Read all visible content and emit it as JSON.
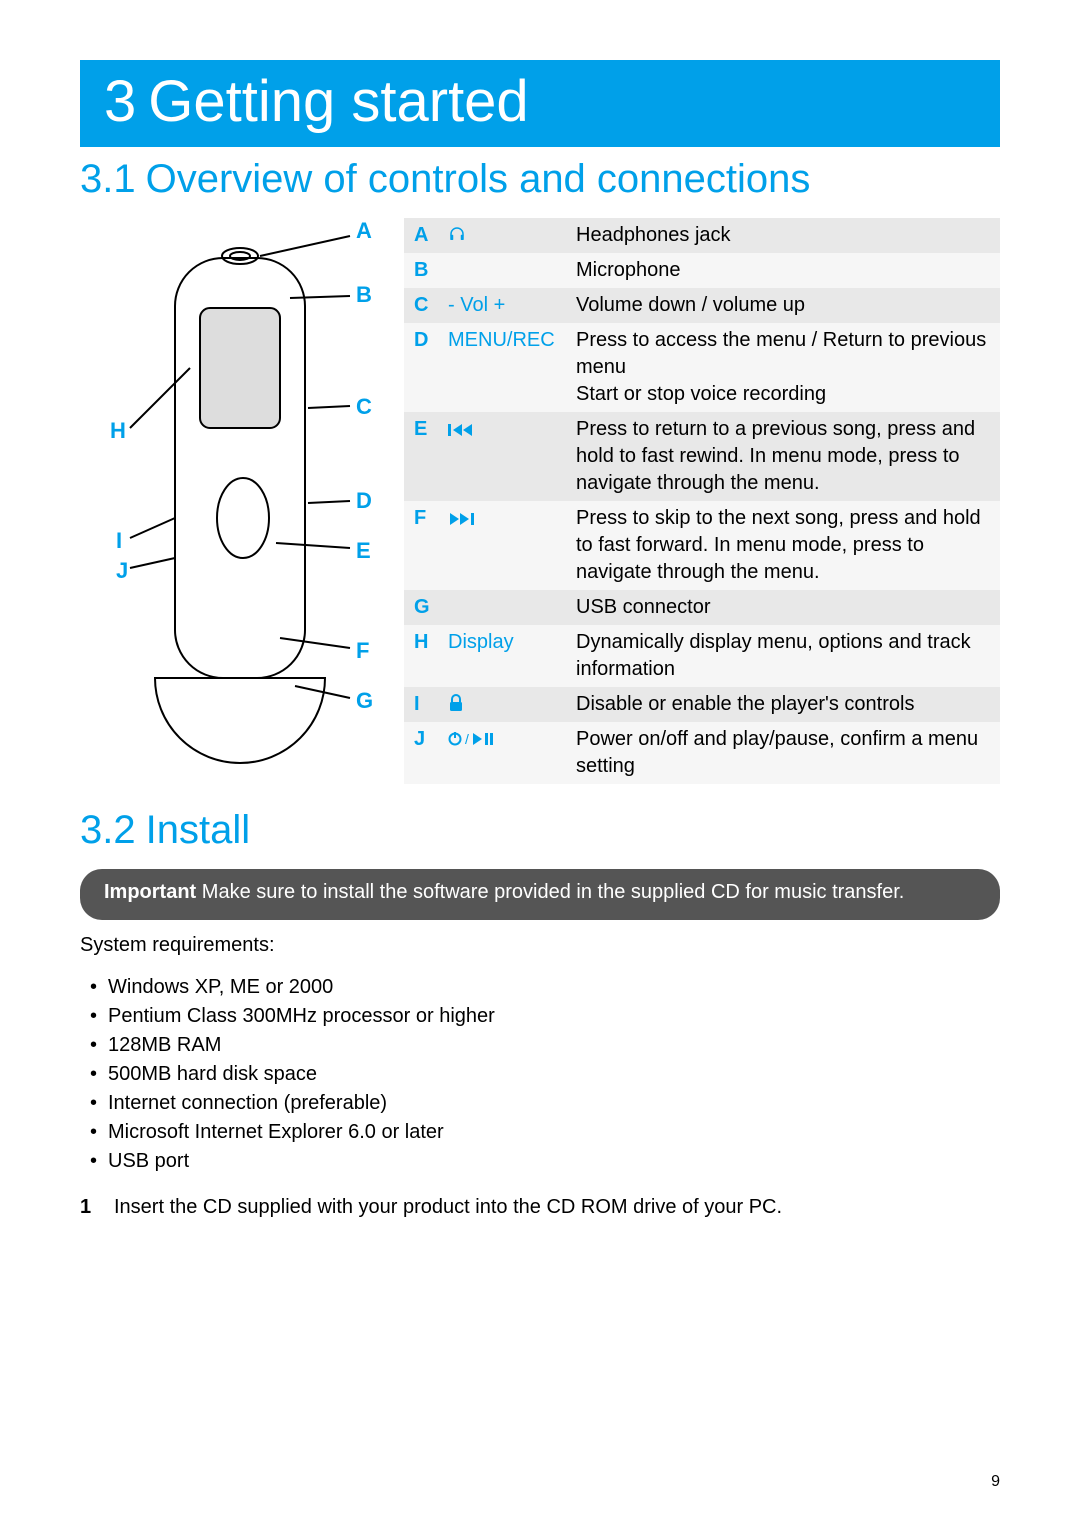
{
  "chapter": {
    "number": "3",
    "title": "Getting started"
  },
  "section1": {
    "number": "3.1",
    "title": "Overview of controls and connections"
  },
  "section2": {
    "number": "3.2",
    "title": "Install"
  },
  "diagram_labels": {
    "A": "A",
    "B": "B",
    "C": "C",
    "D": "D",
    "E": "E",
    "F": "F",
    "G": "G",
    "H": "H",
    "I": "I",
    "J": "J"
  },
  "controls_table": [
    {
      "key": "A",
      "symbol_icon": "headphones",
      "symbol_text": "",
      "desc": "Headphones jack"
    },
    {
      "key": "B",
      "symbol_icon": "",
      "symbol_text": "",
      "desc": "Microphone"
    },
    {
      "key": "C",
      "symbol_icon": "",
      "symbol_text": "- Vol +",
      "desc": "Volume down / volume up"
    },
    {
      "key": "D",
      "symbol_icon": "",
      "symbol_text": "MENU/REC",
      "desc": "Press to access the menu / Return to previous menu\nStart or stop voice recording"
    },
    {
      "key": "E",
      "symbol_icon": "prev",
      "symbol_text": "",
      "desc": "Press to return to a previous song, press and hold to fast rewind. In menu mode, press to navigate through the menu."
    },
    {
      "key": "F",
      "symbol_icon": "next",
      "symbol_text": "",
      "desc": "Press to skip to the next song, press and hold to fast forward. In menu mode, press to navigate through the menu."
    },
    {
      "key": "G",
      "symbol_icon": "",
      "symbol_text": "",
      "desc": "USB connector"
    },
    {
      "key": "H",
      "symbol_icon": "",
      "symbol_text": "Display",
      "desc": "Dynamically display menu, options and track information"
    },
    {
      "key": "I",
      "symbol_icon": "lock",
      "symbol_text": "",
      "desc": "Disable or enable the player's controls"
    },
    {
      "key": "J",
      "symbol_icon": "power-play",
      "symbol_text": "",
      "desc": "Power on/off and play/pause, confirm a menu setting"
    }
  ],
  "important": {
    "lead": "Important",
    "text": "Make sure to install the software provided in the supplied CD for music transfer."
  },
  "sysreq_title": "System requirements:",
  "sysreq": [
    "Windows XP, ME or 2000",
    "Pentium Class 300MHz processor or higher",
    "128MB RAM",
    "500MB hard disk space",
    "Internet connection (preferable)",
    "Microsoft Internet Explorer 6.0 or later",
    "USB port"
  ],
  "step1": {
    "num": "1",
    "text": "Insert the CD supplied with your product into the CD ROM drive of your PC."
  },
  "page_number": "9",
  "colors": {
    "accent": "#00a0e9",
    "banner_bg": "#00a0e9",
    "banner_fg": "#ffffff",
    "row_odd": "#e8e8e8",
    "row_even": "#f6f6f6",
    "important_bg": "#555555"
  }
}
